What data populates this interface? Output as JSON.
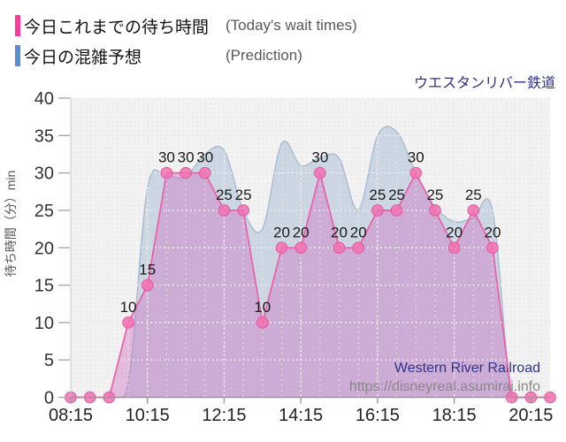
{
  "legend": {
    "items": [
      {
        "label": "今日これまでの待ち時間",
        "sub": "(Today's wait times)",
        "color": "#fb3b9e"
      },
      {
        "label": "今日の混雑予想",
        "sub": "(Prediction)",
        "color": "#5d8ecb"
      }
    ]
  },
  "header": {
    "title": "ウエスタンリバー鉄道",
    "title_color": "#2b2f85"
  },
  "watermark": {
    "line1": "Western River Railroad",
    "line2": "https://disneyreal.asumirai.info",
    "line1_color": "#2e3487",
    "line2_color": "#888888"
  },
  "chart_data": {
    "type": "line",
    "title": "ウエスタンリバー鉄道",
    "ylabel": "待ち時間（分）min",
    "ylim": [
      0,
      40
    ],
    "yticks": [
      0,
      5,
      10,
      15,
      20,
      25,
      30,
      35,
      40
    ],
    "xticks": [
      "08:15",
      "10:15",
      "12:15",
      "14:15",
      "16:15",
      "18:15",
      "20:15"
    ],
    "x": [
      "08:15",
      "08:45",
      "09:15",
      "09:45",
      "10:15",
      "10:45",
      "11:15",
      "11:45",
      "12:15",
      "12:45",
      "13:15",
      "13:45",
      "14:15",
      "14:45",
      "15:15",
      "15:45",
      "16:15",
      "16:45",
      "17:15",
      "17:45",
      "18:15",
      "18:45",
      "19:15",
      "19:45",
      "20:15",
      "20:45"
    ],
    "series": [
      {
        "name": "今日の混雑予想 (Prediction)",
        "style": "smooth-area",
        "line_color": "rgba(150,175,200,0.75)",
        "fill_color": "rgba(125,160,197,0.32)",
        "values": [
          0,
          0,
          0,
          2,
          28,
          29.5,
          29.5,
          32.5,
          33,
          25,
          22.5,
          34,
          31,
          32,
          32,
          25,
          35,
          35.5,
          30,
          25.5,
          23.5,
          24,
          25,
          0,
          0,
          0
        ]
      },
      {
        "name": "今日これまでの待ち時間 (Today's wait times)",
        "style": "line-markers-area",
        "line_color": "#ec5fa7",
        "marker_fill": "#f173b3",
        "marker_stroke": "#e4569f",
        "fill_color": "rgba(206,120,196,0.45)",
        "label_color": "#1a1a1a",
        "values": [
          0,
          0,
          0,
          10,
          15,
          30,
          30,
          30,
          25,
          25,
          10,
          20,
          20,
          30,
          20,
          20,
          25,
          25,
          30,
          25,
          20,
          25,
          20,
          0,
          0,
          0
        ]
      }
    ],
    "grid": true,
    "legend_position": "top-left"
  }
}
